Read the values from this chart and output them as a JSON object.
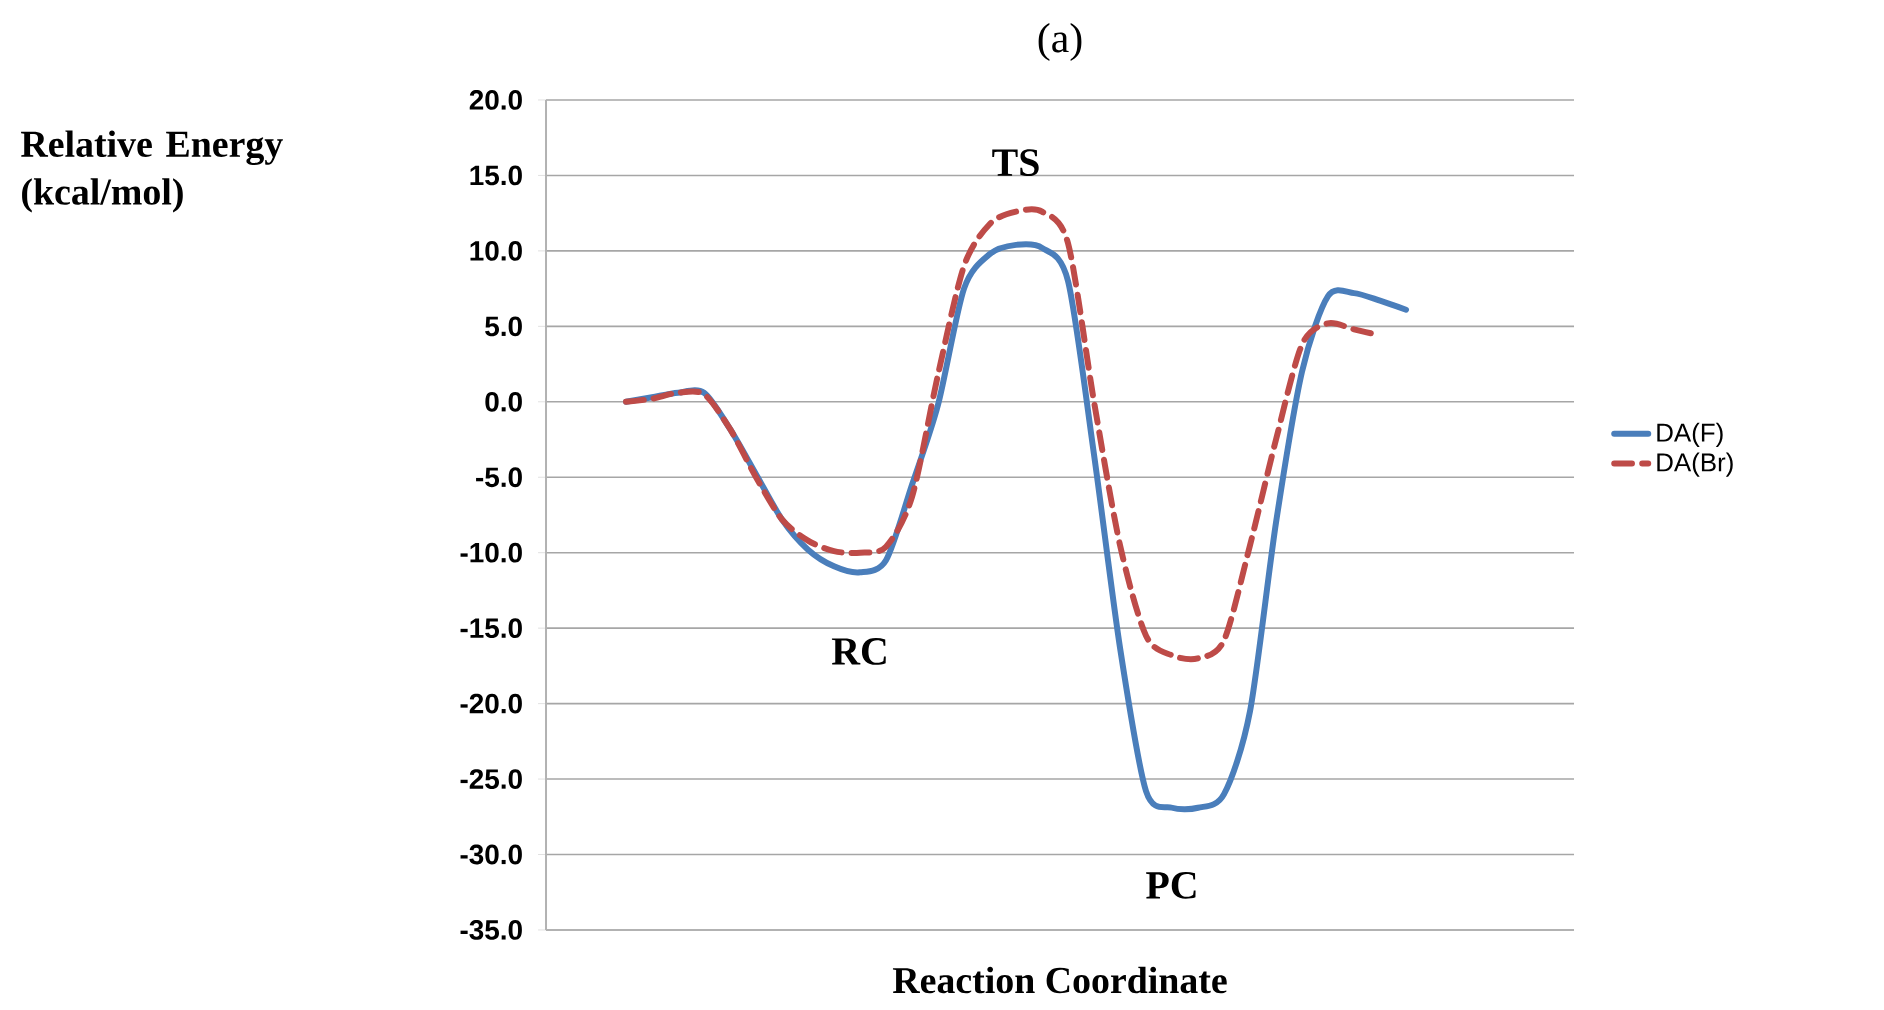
{
  "chart_data": {
    "type": "line",
    "title": "(a)",
    "xlabel": "Reaction Coordinate",
    "ylabel": "Relative Energy (kcal/mol)",
    "categories": [
      null,
      null,
      null,
      null,
      null,
      null,
      null,
      null,
      null,
      null,
      null,
      null,
      null,
      null,
      null,
      null,
      null,
      null,
      null,
      null,
      null,
      null,
      null,
      null,
      null,
      null,
      null,
      null,
      null,
      null,
      null
    ],
    "series": [
      {
        "name": "DA(F)",
        "color": "#4a7ebb",
        "line_style": "solid",
        "values": [
          0,
          0.3,
          0.6,
          0.6,
          -1.8,
          -4.8,
          -7.8,
          -9.8,
          -10.9,
          -11.3,
          -10.5,
          -5.5,
          -0.2,
          7.5,
          9.8,
          10.4,
          10.2,
          8.0,
          -3.5,
          -16.3,
          -25.8,
          -26.9,
          -26.9,
          -26.0,
          -20.5,
          -8.0,
          2.0,
          7.0,
          7.2,
          6.7,
          6.1
        ]
      },
      {
        "name": "DA(Br)",
        "color": "#be4b48",
        "line_style": "dashed",
        "values": [
          0,
          0.2,
          0.6,
          0.5,
          -1.8,
          -5.0,
          -7.8,
          -9.2,
          -9.9,
          -10.0,
          -9.6,
          -6.3,
          1.8,
          9.0,
          11.8,
          12.6,
          12.6,
          10.5,
          0.0,
          -9.5,
          -15.5,
          -16.8,
          -17.0,
          -15.8,
          -9.5,
          -2.5,
          3.8,
          5.2,
          4.8,
          4.4,
          null
        ]
      }
    ],
    "ylim": [
      -35,
      20
    ],
    "yticks": [
      {
        "value": -35,
        "label": "-35.0"
      },
      {
        "value": -30,
        "label": "-30.0"
      },
      {
        "value": -25,
        "label": "-25.0"
      },
      {
        "value": -20,
        "label": "-20.0"
      },
      {
        "value": -15,
        "label": "-15.0"
      },
      {
        "value": -10,
        "label": "-10.0"
      },
      {
        "value": -5,
        "label": "-5.0"
      },
      {
        "value": 0,
        "label": "0.0"
      },
      {
        "value": 5,
        "label": "5.0"
      },
      {
        "value": 10,
        "label": "10.0"
      },
      {
        "value": 15,
        "label": "15.0"
      },
      {
        "value": 20,
        "label": "20.0"
      }
    ],
    "tick_labels": "y",
    "grid": "y",
    "legend": "right",
    "marker": "none",
    "annotations": [
      "TS",
      "RC",
      "PC"
    ]
  }
}
